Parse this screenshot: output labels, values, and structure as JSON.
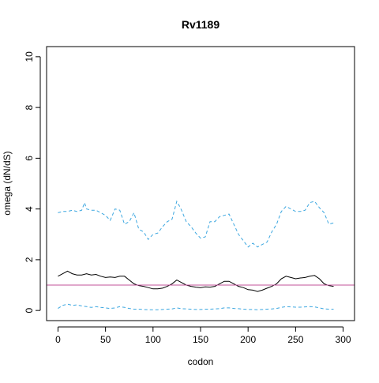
{
  "chart_data": {
    "type": "line",
    "title": "Rv1189",
    "xlabel": "codon",
    "ylabel": "omega (dN/dS)",
    "xlim": [
      0,
      300
    ],
    "ylim": [
      0,
      10
    ],
    "xticks": [
      0,
      50,
      100,
      150,
      200,
      250,
      300
    ],
    "yticks": [
      0,
      2,
      4,
      6,
      8,
      10
    ],
    "grid": false,
    "legend": "none",
    "reference_line": {
      "y": 1,
      "color": "#c0509a"
    },
    "series": [
      {
        "style": "solid",
        "color": "#000000",
        "x": [
          0,
          5,
          10,
          15,
          20,
          25,
          30,
          35,
          40,
          45,
          50,
          55,
          60,
          65,
          70,
          75,
          80,
          85,
          90,
          95,
          100,
          105,
          110,
          115,
          120,
          125,
          130,
          135,
          140,
          145,
          150,
          155,
          160,
          165,
          170,
          175,
          180,
          185,
          190,
          195,
          200,
          205,
          210,
          215,
          220,
          225,
          230,
          235,
          240,
          245,
          250,
          255,
          260,
          265,
          270,
          275,
          280,
          285,
          290
        ],
        "y": [
          1.35,
          1.45,
          1.55,
          1.45,
          1.4,
          1.4,
          1.45,
          1.4,
          1.42,
          1.35,
          1.3,
          1.32,
          1.3,
          1.35,
          1.35,
          1.2,
          1.05,
          0.98,
          0.95,
          0.9,
          0.85,
          0.85,
          0.88,
          0.95,
          1.05,
          1.2,
          1.1,
          1.0,
          0.95,
          0.92,
          0.9,
          0.93,
          0.92,
          0.95,
          1.05,
          1.15,
          1.15,
          1.05,
          0.95,
          0.9,
          0.82,
          0.8,
          0.75,
          0.8,
          0.88,
          0.95,
          1.05,
          1.25,
          1.35,
          1.3,
          1.25,
          1.28,
          1.3,
          1.35,
          1.38,
          1.25,
          1.05,
          0.98,
          0.95
        ]
      },
      {
        "style": "dashed",
        "color": "#3ca7e0",
        "x": [
          0,
          5,
          10,
          15,
          20,
          25,
          28,
          30,
          35,
          40,
          45,
          50,
          55,
          60,
          65,
          70,
          75,
          80,
          85,
          90,
          95,
          100,
          105,
          110,
          115,
          120,
          125,
          128,
          130,
          135,
          140,
          145,
          150,
          155,
          160,
          165,
          170,
          175,
          180,
          185,
          190,
          195,
          200,
          205,
          210,
          215,
          220,
          225,
          230,
          235,
          240,
          245,
          250,
          255,
          260,
          265,
          270,
          275,
          280,
          285,
          290
        ],
        "y": [
          3.85,
          3.9,
          3.9,
          3.95,
          3.9,
          3.95,
          4.25,
          4.0,
          3.95,
          3.95,
          3.85,
          3.75,
          3.55,
          4.0,
          3.95,
          3.4,
          3.5,
          3.85,
          3.2,
          3.1,
          2.8,
          3.0,
          3.05,
          3.3,
          3.5,
          3.6,
          4.3,
          4.1,
          3.95,
          3.5,
          3.3,
          3.05,
          2.85,
          2.9,
          3.5,
          3.5,
          3.7,
          3.75,
          3.8,
          3.4,
          3.0,
          2.75,
          2.5,
          2.65,
          2.5,
          2.6,
          2.7,
          3.1,
          3.4,
          3.9,
          4.1,
          4.0,
          3.9,
          3.9,
          3.95,
          4.25,
          4.3,
          4.05,
          3.85,
          3.4,
          3.45
        ]
      },
      {
        "style": "dashed",
        "color": "#3ca7e0",
        "x": [
          0,
          5,
          10,
          15,
          20,
          25,
          30,
          35,
          40,
          45,
          50,
          55,
          60,
          65,
          70,
          75,
          80,
          85,
          90,
          95,
          100,
          105,
          110,
          115,
          120,
          125,
          130,
          135,
          140,
          145,
          150,
          155,
          160,
          165,
          170,
          175,
          180,
          185,
          190,
          195,
          200,
          205,
          210,
          215,
          220,
          225,
          230,
          235,
          240,
          245,
          250,
          255,
          260,
          265,
          270,
          275,
          280,
          285,
          290
        ],
        "y": [
          0.08,
          0.2,
          0.25,
          0.2,
          0.22,
          0.18,
          0.15,
          0.12,
          0.15,
          0.12,
          0.1,
          0.08,
          0.1,
          0.15,
          0.12,
          0.08,
          0.05,
          0.05,
          0.04,
          0.03,
          0.03,
          0.03,
          0.04,
          0.05,
          0.06,
          0.1,
          0.07,
          0.06,
          0.05,
          0.04,
          0.04,
          0.05,
          0.05,
          0.06,
          0.07,
          0.1,
          0.1,
          0.08,
          0.07,
          0.05,
          0.04,
          0.04,
          0.03,
          0.04,
          0.05,
          0.06,
          0.08,
          0.12,
          0.15,
          0.14,
          0.13,
          0.13,
          0.14,
          0.15,
          0.14,
          0.1,
          0.06,
          0.05,
          0.05
        ]
      }
    ]
  }
}
